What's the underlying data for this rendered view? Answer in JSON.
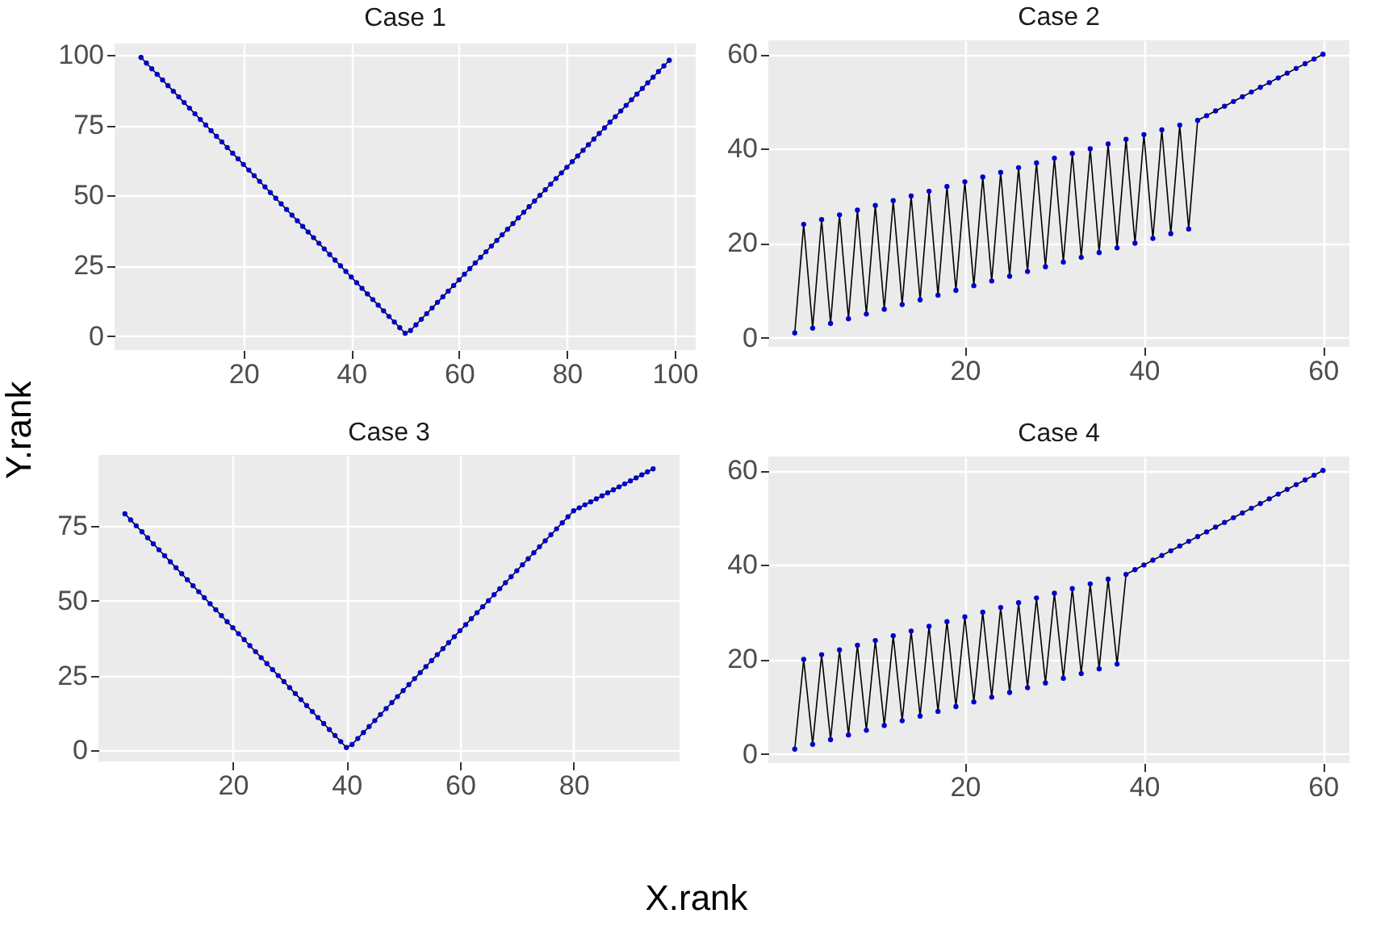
{
  "chart_data": [
    {
      "type": "line",
      "title": "Case 1",
      "ylabel": "Y.rank",
      "grid": true,
      "xlim": [
        -3.9,
        103.9
      ],
      "xticks": [
        20,
        40,
        60,
        80,
        100
      ],
      "ylim": [
        -4.95,
        103.95
      ],
      "yticks": [
        0,
        25,
        50,
        75,
        100
      ],
      "x": [
        1,
        2,
        3,
        4,
        5,
        6,
        7,
        8,
        9,
        10,
        11,
        12,
        13,
        14,
        15,
        16,
        17,
        18,
        19,
        20,
        21,
        22,
        23,
        24,
        25,
        26,
        27,
        28,
        29,
        30,
        31,
        32,
        33,
        34,
        35,
        36,
        37,
        38,
        39,
        40,
        41,
        42,
        43,
        44,
        45,
        46,
        47,
        48,
        49,
        50,
        51,
        52,
        53,
        54,
        55,
        56,
        57,
        58,
        59,
        60,
        61,
        62,
        63,
        64,
        65,
        66,
        67,
        68,
        69,
        70,
        71,
        72,
        73,
        74,
        75,
        76,
        77,
        78,
        79,
        80,
        81,
        82,
        83,
        84,
        85,
        86,
        87,
        88,
        89,
        90,
        91,
        92,
        93,
        94,
        95,
        96,
        97,
        98,
        99
      ],
      "series": [
        {
          "color": "#000000",
          "values": [
            99,
            97,
            95,
            93,
            91,
            89,
            87,
            85,
            83,
            81,
            79,
            77,
            75,
            73,
            71,
            69,
            67,
            65,
            63,
            61,
            59,
            57,
            55,
            53,
            51,
            49,
            47,
            45,
            43,
            41,
            39,
            37,
            35,
            33,
            31,
            29,
            27,
            25,
            23,
            21,
            19,
            17,
            15,
            13,
            11,
            9,
            7,
            5,
            3,
            1,
            2,
            4,
            6,
            8,
            10,
            12,
            14,
            16,
            18,
            20,
            22,
            24,
            26,
            28,
            30,
            32,
            34,
            36,
            38,
            40,
            42,
            44,
            46,
            48,
            50,
            52,
            54,
            56,
            58,
            60,
            62,
            64,
            66,
            68,
            70,
            72,
            74,
            76,
            78,
            80,
            82,
            84,
            86,
            88,
            90,
            92,
            94,
            96,
            98
          ]
        },
        {
          "type": "scatter",
          "color": "#0000cc",
          "values": [
            99,
            97,
            95,
            93,
            91,
            89,
            87,
            85,
            83,
            81,
            79,
            77,
            75,
            73,
            71,
            69,
            67,
            65,
            63,
            61,
            59,
            57,
            55,
            53,
            51,
            49,
            47,
            45,
            43,
            41,
            39,
            37,
            35,
            33,
            31,
            29,
            27,
            25,
            23,
            21,
            19,
            17,
            15,
            13,
            11,
            9,
            7,
            5,
            3,
            1,
            2,
            4,
            6,
            8,
            10,
            12,
            14,
            16,
            18,
            20,
            22,
            24,
            26,
            28,
            30,
            32,
            34,
            36,
            38,
            40,
            42,
            44,
            46,
            48,
            50,
            52,
            54,
            56,
            58,
            60,
            62,
            64,
            66,
            68,
            70,
            72,
            74,
            76,
            78,
            80,
            82,
            84,
            86,
            88,
            90,
            92,
            94,
            96,
            98
          ]
        }
      ]
    },
    {
      "type": "line",
      "title": "Case 2",
      "grid": true,
      "xlim": [
        -1.95,
        62.95
      ],
      "xticks": [
        20,
        40,
        60
      ],
      "ylim": [
        -1.95,
        62.95
      ],
      "yticks": [
        0,
        20,
        40,
        60
      ],
      "x": [
        1,
        2,
        3,
        4,
        5,
        6,
        7,
        8,
        9,
        10,
        11,
        12,
        13,
        14,
        15,
        16,
        17,
        18,
        19,
        20,
        21,
        22,
        23,
        24,
        25,
        26,
        27,
        28,
        29,
        30,
        31,
        32,
        33,
        34,
        35,
        36,
        37,
        38,
        39,
        40,
        41,
        42,
        43,
        44,
        45,
        46,
        47,
        48,
        49,
        50,
        51,
        52,
        53,
        54,
        55,
        56,
        57,
        58,
        59,
        60
      ],
      "series": [
        {
          "color": "#000000",
          "values": [
            1,
            24,
            2,
            25,
            3,
            26,
            4,
            27,
            5,
            28,
            6,
            29,
            7,
            30,
            8,
            31,
            9,
            32,
            10,
            33,
            11,
            34,
            12,
            35,
            13,
            36,
            14,
            37,
            15,
            38,
            16,
            39,
            17,
            40,
            18,
            41,
            19,
            42,
            20,
            43,
            21,
            44,
            22,
            45,
            23,
            46,
            47,
            48,
            49,
            50,
            51,
            52,
            53,
            54,
            55,
            56,
            57,
            58,
            59,
            60
          ]
        },
        {
          "type": "scatter",
          "color": "#0000cc",
          "values": [
            1,
            24,
            2,
            25,
            3,
            26,
            4,
            27,
            5,
            28,
            6,
            29,
            7,
            30,
            8,
            31,
            9,
            32,
            10,
            33,
            11,
            34,
            12,
            35,
            13,
            36,
            14,
            37,
            15,
            38,
            16,
            39,
            17,
            40,
            18,
            41,
            19,
            42,
            20,
            43,
            21,
            44,
            22,
            45,
            23,
            46,
            47,
            48,
            49,
            50,
            51,
            52,
            53,
            54,
            55,
            56,
            57,
            58,
            59,
            60
          ]
        }
      ]
    },
    {
      "type": "line",
      "title": "Case 3",
      "xlabel": "X.rank",
      "grid": true,
      "xlim": [
        -3.65,
        98.65
      ],
      "xticks": [
        20,
        40,
        60,
        80
      ],
      "ylim": [
        -3.65,
        98.65
      ],
      "yticks": [
        0,
        25,
        50,
        75
      ],
      "x": [
        1,
        2,
        3,
        4,
        5,
        6,
        7,
        8,
        9,
        10,
        11,
        12,
        13,
        14,
        15,
        16,
        17,
        18,
        19,
        20,
        21,
        22,
        23,
        24,
        25,
        26,
        27,
        28,
        29,
        30,
        31,
        32,
        33,
        34,
        35,
        36,
        37,
        38,
        39,
        40,
        41,
        42,
        43,
        44,
        45,
        46,
        47,
        48,
        49,
        50,
        51,
        52,
        53,
        54,
        55,
        56,
        57,
        58,
        59,
        60,
        61,
        62,
        63,
        64,
        65,
        66,
        67,
        68,
        69,
        70,
        71,
        72,
        73,
        74,
        75,
        76,
        77,
        78,
        79,
        80,
        81,
        82,
        83,
        84,
        85,
        86,
        87,
        88,
        89,
        90,
        91,
        92,
        93,
        94
      ],
      "series": [
        {
          "color": "#000000",
          "values": [
            79,
            77,
            75,
            73,
            71,
            69,
            67,
            65,
            63,
            61,
            59,
            57,
            55,
            53,
            51,
            49,
            47,
            45,
            43,
            41,
            39,
            37,
            35,
            33,
            31,
            29,
            27,
            25,
            23,
            21,
            19,
            17,
            15,
            13,
            11,
            9,
            7,
            5,
            3,
            1,
            2,
            4,
            6,
            8,
            10,
            12,
            14,
            16,
            18,
            20,
            22,
            24,
            26,
            28,
            30,
            32,
            34,
            36,
            38,
            40,
            42,
            44,
            46,
            48,
            50,
            52,
            54,
            56,
            58,
            60,
            62,
            64,
            66,
            68,
            70,
            72,
            74,
            76,
            78,
            80,
            81,
            82,
            83,
            84,
            85,
            86,
            87,
            88,
            89,
            90,
            91,
            92,
            93,
            94
          ]
        },
        {
          "type": "scatter",
          "color": "#0000cc",
          "values": [
            79,
            77,
            75,
            73,
            71,
            69,
            67,
            65,
            63,
            61,
            59,
            57,
            55,
            53,
            51,
            49,
            47,
            45,
            43,
            41,
            39,
            37,
            35,
            33,
            31,
            29,
            27,
            25,
            23,
            21,
            19,
            17,
            15,
            13,
            11,
            9,
            7,
            5,
            3,
            1,
            2,
            4,
            6,
            8,
            10,
            12,
            14,
            16,
            18,
            20,
            22,
            24,
            26,
            28,
            30,
            32,
            34,
            36,
            38,
            40,
            42,
            44,
            46,
            48,
            50,
            52,
            54,
            56,
            58,
            60,
            62,
            64,
            66,
            68,
            70,
            72,
            74,
            76,
            78,
            80,
            81,
            82,
            83,
            84,
            85,
            86,
            87,
            88,
            89,
            90,
            91,
            92,
            93,
            94
          ]
        }
      ]
    },
    {
      "type": "line",
      "title": "Case 4",
      "grid": true,
      "xlim": [
        -1.95,
        62.95
      ],
      "xticks": [
        20,
        40,
        60
      ],
      "ylim": [
        -1.95,
        62.95
      ],
      "yticks": [
        0,
        20,
        40,
        60
      ],
      "x": [
        1,
        2,
        3,
        4,
        5,
        6,
        7,
        8,
        9,
        10,
        11,
        12,
        13,
        14,
        15,
        16,
        17,
        18,
        19,
        20,
        21,
        22,
        23,
        24,
        25,
        26,
        27,
        28,
        29,
        30,
        31,
        32,
        33,
        34,
        35,
        36,
        37,
        38,
        39,
        40,
        41,
        42,
        43,
        44,
        45,
        46,
        47,
        48,
        49,
        50,
        51,
        52,
        53,
        54,
        55,
        56,
        57,
        58,
        59,
        60
      ],
      "series": [
        {
          "color": "#000000",
          "values": [
            1,
            20,
            2,
            21,
            3,
            22,
            4,
            23,
            5,
            24,
            6,
            25,
            7,
            26,
            8,
            27,
            9,
            28,
            10,
            29,
            11,
            30,
            12,
            31,
            13,
            32,
            14,
            33,
            15,
            34,
            16,
            35,
            17,
            36,
            18,
            37,
            19,
            38,
            39,
            40,
            41,
            42,
            43,
            44,
            45,
            46,
            47,
            48,
            49,
            50,
            51,
            52,
            53,
            54,
            55,
            56,
            57,
            58,
            59,
            60
          ]
        },
        {
          "type": "scatter",
          "color": "#0000cc",
          "values": [
            1,
            20,
            2,
            21,
            3,
            22,
            4,
            23,
            5,
            24,
            6,
            25,
            7,
            26,
            8,
            27,
            9,
            28,
            10,
            29,
            11,
            30,
            12,
            31,
            13,
            32,
            14,
            33,
            15,
            34,
            16,
            35,
            17,
            36,
            18,
            37,
            19,
            38,
            39,
            40,
            41,
            42,
            43,
            44,
            45,
            46,
            47,
            48,
            49,
            50,
            51,
            52,
            53,
            54,
            55,
            56,
            57,
            58,
            59,
            60
          ]
        }
      ]
    }
  ]
}
